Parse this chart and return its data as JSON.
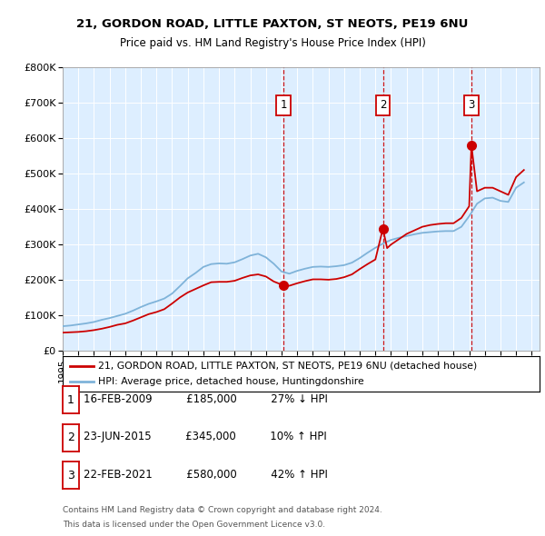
{
  "title1": "21, GORDON ROAD, LITTLE PAXTON, ST NEOTS, PE19 6NU",
  "title2": "Price paid vs. HM Land Registry's House Price Index (HPI)",
  "legend_line1": "21, GORDON ROAD, LITTLE PAXTON, ST NEOTS, PE19 6NU (detached house)",
  "legend_line2": "HPI: Average price, detached house, Huntingdonshire",
  "footer1": "Contains HM Land Registry data © Crown copyright and database right 2024.",
  "footer2": "This data is licensed under the Open Government Licence v3.0.",
  "sales": [
    {
      "num": 1,
      "date": "16-FEB-2009",
      "price": 185000,
      "pct": "27%",
      "dir": "↓",
      "x_year": 2009.12
    },
    {
      "num": 2,
      "date": "23-JUN-2015",
      "price": 345000,
      "pct": "10%",
      "dir": "↑",
      "x_year": 2015.48
    },
    {
      "num": 3,
      "date": "22-FEB-2021",
      "price": 580000,
      "pct": "42%",
      "dir": "↑",
      "x_year": 2021.14
    }
  ],
  "hpi_color": "#7fb3d9",
  "price_color": "#cc0000",
  "background_color": "#ddeeff",
  "ylim": [
    0,
    800000
  ],
  "xlim_start": 1995.0,
  "xlim_end": 2025.5,
  "hpi_data_years": [
    1995.0,
    1995.5,
    1996.0,
    1996.5,
    1997.0,
    1997.5,
    1998.0,
    1998.5,
    1999.0,
    1999.5,
    2000.0,
    2000.5,
    2001.0,
    2001.5,
    2002.0,
    2002.5,
    2003.0,
    2003.5,
    2004.0,
    2004.5,
    2005.0,
    2005.5,
    2006.0,
    2006.5,
    2007.0,
    2007.5,
    2008.0,
    2008.5,
    2009.0,
    2009.5,
    2010.0,
    2010.5,
    2011.0,
    2011.5,
    2012.0,
    2012.5,
    2013.0,
    2013.5,
    2014.0,
    2014.5,
    2015.0,
    2015.5,
    2016.0,
    2016.5,
    2017.0,
    2017.5,
    2018.0,
    2018.5,
    2019.0,
    2019.5,
    2020.0,
    2020.5,
    2021.0,
    2021.5,
    2022.0,
    2022.5,
    2023.0,
    2023.5,
    2024.0,
    2024.5
  ],
  "hpi_data_values": [
    70000,
    72000,
    75000,
    78000,
    82000,
    88000,
    93000,
    99000,
    105000,
    114000,
    124000,
    133000,
    140000,
    148000,
    162000,
    183000,
    205000,
    220000,
    237000,
    245000,
    247000,
    246000,
    250000,
    259000,
    269000,
    274000,
    264000,
    246000,
    224000,
    218000,
    226000,
    232000,
    237000,
    238000,
    237000,
    239000,
    242000,
    249000,
    262000,
    277000,
    291000,
    303000,
    313000,
    319000,
    324000,
    329000,
    333000,
    335000,
    337000,
    338000,
    338000,
    350000,
    380000,
    415000,
    430000,
    432000,
    423000,
    420000,
    460000,
    475000
  ],
  "price_data_years": [
    1995.0,
    1995.5,
    1996.0,
    1996.5,
    1997.0,
    1997.5,
    1998.0,
    1998.5,
    1999.0,
    1999.5,
    2000.0,
    2000.5,
    2001.0,
    2001.5,
    2002.0,
    2002.5,
    2003.0,
    2003.5,
    2004.0,
    2004.5,
    2005.0,
    2005.5,
    2006.0,
    2006.5,
    2007.0,
    2007.5,
    2008.0,
    2008.5,
    2009.12,
    2009.5,
    2010.0,
    2010.5,
    2011.0,
    2011.5,
    2012.0,
    2012.5,
    2013.0,
    2013.5,
    2014.0,
    2014.5,
    2015.0,
    2015.48,
    2015.75,
    2016.0,
    2016.5,
    2017.0,
    2017.5,
    2018.0,
    2018.5,
    2019.0,
    2019.5,
    2020.0,
    2020.5,
    2021.0,
    2021.14,
    2021.5,
    2022.0,
    2022.5,
    2023.0,
    2023.5,
    2024.0,
    2024.5
  ],
  "price_data_values": [
    52000,
    53000,
    54000,
    56000,
    59000,
    63000,
    68000,
    74000,
    78000,
    86000,
    95000,
    104000,
    110000,
    118000,
    134000,
    151000,
    165000,
    175000,
    185000,
    194000,
    195000,
    195000,
    198000,
    206000,
    213000,
    216000,
    210000,
    196000,
    185000,
    184000,
    191000,
    197000,
    202000,
    202000,
    201000,
    203000,
    208000,
    216000,
    231000,
    245000,
    258000,
    345000,
    290000,
    300000,
    315000,
    330000,
    340000,
    350000,
    355000,
    358000,
    360000,
    360000,
    375000,
    408000,
    580000,
    450000,
    460000,
    460000,
    450000,
    440000,
    490000,
    510000
  ]
}
